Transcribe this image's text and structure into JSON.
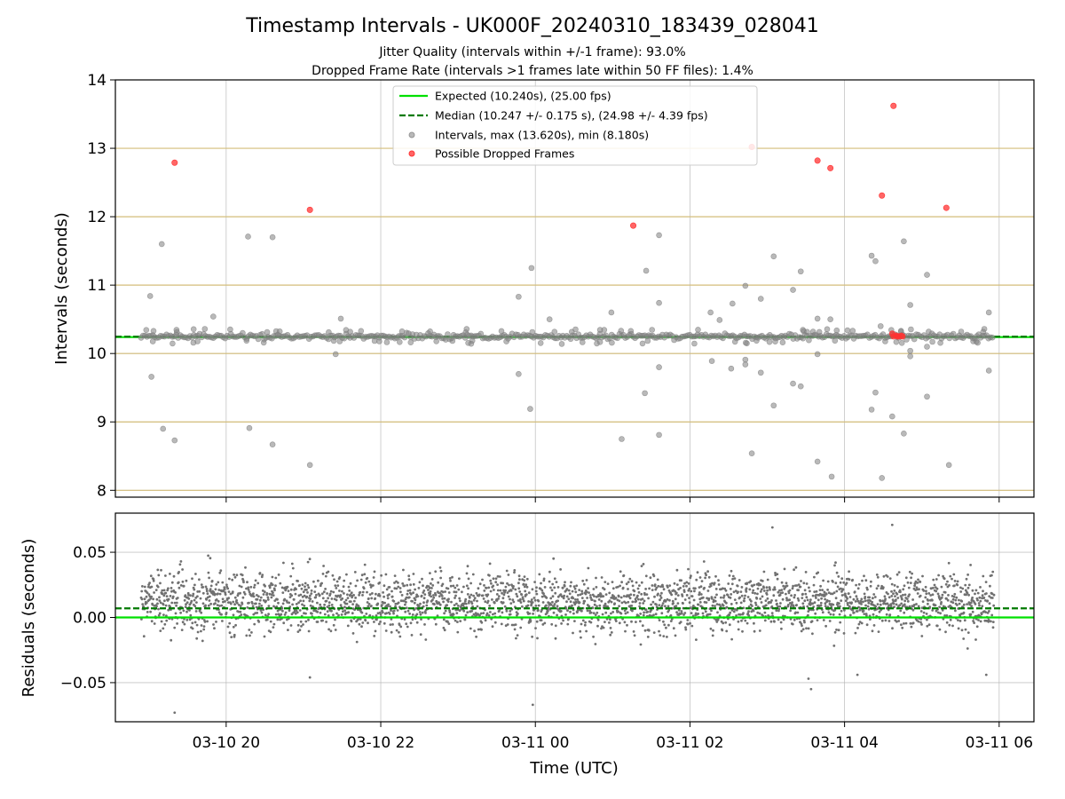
{
  "chart_data": {
    "type": "scatter",
    "title": "Timestamp Intervals - UK000F_20240310_183439_028041",
    "subtitles": [
      "Jitter Quality (intervals within +/-1 frame): 93.0%",
      "Dropped Frame Rate (intervals >1 frames late within 50 FF files): 1.4%"
    ],
    "xlabel": "Time (UTC)",
    "x_tick_labels": [
      "03-10 20",
      "03-10 22",
      "03-11 00",
      "03-11 02",
      "03-11 04",
      "03-11 06"
    ],
    "xlim": [
      "2024-03-10T18:34",
      "2024-03-11T06:27"
    ],
    "grid": true,
    "colors": {
      "expected": "#00e000",
      "median": "#007a00",
      "intervals": "#808080",
      "dropped": "#ff3333",
      "reference_band": "#d4be7a"
    },
    "panels": [
      {
        "name": "intervals",
        "ylabel": "Intervals (seconds)",
        "ylim": [
          7.9,
          14.0
        ],
        "y_ticks": [
          8,
          9,
          10,
          11,
          12,
          13,
          14
        ],
        "y_tick_labels": [
          "8",
          "9",
          "10",
          "11",
          "12",
          "13",
          "14"
        ],
        "reference_lines_y": [
          8,
          9,
          10,
          11,
          12,
          13
        ],
        "expected_y": 10.24,
        "median_y": 10.247,
        "legend_position": "top-center",
        "legend": [
          "Expected (10.240s), (25.00 fps)",
          "Median (10.247 +/- 0.175 s), (24.98 +/- 4.39 fps)",
          "Intervals, max (13.620s), min (8.180s)",
          "Possible Dropped Frames"
        ],
        "series": [
          {
            "name": "Intervals, max (13.620s), min (8.180s)",
            "core_band": [
              10.14,
              10.36
            ],
            "outliers": [
              [
                "2024-03-10T19:10",
                11.6
              ],
              [
                "2024-03-10T19:01",
                10.84
              ],
              [
                "2024-03-10T19:02",
                9.66
              ],
              [
                "2024-03-10T19:11",
                8.9
              ],
              [
                "2024-03-10T19:20",
                8.73
              ],
              [
                "2024-03-10T19:50",
                10.54
              ],
              [
                "2024-03-10T20:17",
                11.71
              ],
              [
                "2024-03-10T20:36",
                11.7
              ],
              [
                "2024-03-10T20:18",
                8.91
              ],
              [
                "2024-03-10T20:36",
                8.67
              ],
              [
                "2024-03-10T21:05",
                8.37
              ],
              [
                "2024-03-10T21:29",
                10.51
              ],
              [
                "2024-03-10T21:25",
                9.99
              ],
              [
                "2024-03-10T23:47",
                10.83
              ],
              [
                "2024-03-10T23:47",
                9.7
              ],
              [
                "2024-03-10T23:57",
                11.25
              ],
              [
                "2024-03-10T23:56",
                9.19
              ],
              [
                "2024-03-11T00:11",
                10.5
              ],
              [
                "2024-03-11T00:59",
                10.6
              ],
              [
                "2024-03-11T01:07",
                8.75
              ],
              [
                "2024-03-11T01:26",
                11.21
              ],
              [
                "2024-03-11T01:25",
                9.42
              ],
              [
                "2024-03-11T01:36",
                11.73
              ],
              [
                "2024-03-11T01:36",
                10.74
              ],
              [
                "2024-03-11T01:36",
                9.8
              ],
              [
                "2024-03-11T01:36",
                8.81
              ],
              [
                "2024-03-11T02:16",
                10.6
              ],
              [
                "2024-03-11T02:17",
                9.89
              ],
              [
                "2024-03-11T02:23",
                10.49
              ],
              [
                "2024-03-11T02:33",
                10.73
              ],
              [
                "2024-03-11T02:32",
                9.78
              ],
              [
                "2024-03-11T02:43",
                10.99
              ],
              [
                "2024-03-11T02:43",
                9.91
              ],
              [
                "2024-03-11T02:43",
                9.84
              ],
              [
                "2024-03-11T02:48",
                8.54
              ],
              [
                "2024-03-11T02:55",
                10.8
              ],
              [
                "2024-03-11T02:55",
                9.72
              ],
              [
                "2024-03-11T03:05",
                11.42
              ],
              [
                "2024-03-11T03:05",
                9.24
              ],
              [
                "2024-03-11T03:20",
                10.93
              ],
              [
                "2024-03-11T03:20",
                9.56
              ],
              [
                "2024-03-11T03:26",
                11.2
              ],
              [
                "2024-03-11T03:26",
                9.52
              ],
              [
                "2024-03-11T03:39",
                10.51
              ],
              [
                "2024-03-11T03:39",
                9.99
              ],
              [
                "2024-03-11T03:39",
                8.42
              ],
              [
                "2024-03-11T03:49",
                10.5
              ],
              [
                "2024-03-11T03:50",
                8.2
              ],
              [
                "2024-03-11T04:21",
                11.43
              ],
              [
                "2024-03-11T04:24",
                11.35
              ],
              [
                "2024-03-11T04:21",
                9.18
              ],
              [
                "2024-03-11T04:24",
                9.43
              ],
              [
                "2024-03-11T04:28",
                10.4
              ],
              [
                "2024-03-11T04:29",
                8.18
              ],
              [
                "2024-03-11T04:37",
                9.08
              ],
              [
                "2024-03-11T04:46",
                11.64
              ],
              [
                "2024-03-11T04:46",
                8.83
              ],
              [
                "2024-03-11T04:51",
                10.71
              ],
              [
                "2024-03-11T04:51",
                10.04
              ],
              [
                "2024-03-11T04:51",
                9.96
              ],
              [
                "2024-03-11T05:04",
                11.15
              ],
              [
                "2024-03-11T05:04",
                10.1
              ],
              [
                "2024-03-11T05:04",
                9.37
              ],
              [
                "2024-03-11T05:21",
                8.37
              ],
              [
                "2024-03-11T05:52",
                10.6
              ],
              [
                "2024-03-11T05:52",
                9.75
              ]
            ]
          },
          {
            "name": "Possible Dropped Frames",
            "points": [
              [
                "2024-03-10T19:20",
                12.79
              ],
              [
                "2024-03-10T21:05",
                12.1
              ],
              [
                "2024-03-11T01:16",
                11.87
              ],
              [
                "2024-03-11T02:48",
                13.02
              ],
              [
                "2024-03-11T03:39",
                12.82
              ],
              [
                "2024-03-11T03:49",
                12.71
              ],
              [
                "2024-03-11T04:29",
                12.31
              ],
              [
                "2024-03-11T04:38",
                13.62
              ],
              [
                "2024-03-11T05:19",
                12.13
              ],
              [
                "2024-03-11T04:37",
                10.29
              ],
              [
                "2024-03-11T04:38",
                10.25
              ],
              [
                "2024-03-11T04:40",
                10.26
              ],
              [
                "2024-03-11T04:41",
                10.25
              ],
              [
                "2024-03-11T04:42",
                10.25
              ],
              [
                "2024-03-11T04:44",
                10.26
              ],
              [
                "2024-03-11T04:45",
                10.25
              ]
            ]
          }
        ]
      },
      {
        "name": "residuals",
        "ylabel": "Residuals (seconds)",
        "ylim": [
          -0.08,
          0.08
        ],
        "y_ticks": [
          -0.05,
          0.0,
          0.05
        ],
        "y_tick_labels": [
          "−0.05",
          "0.00",
          "0.05"
        ],
        "expected_y": 0.0,
        "median_y": 0.007,
        "series": [
          {
            "name": "Residuals",
            "core_distribution": {
              "center": 0.012,
              "spread": 0.016
            },
            "outliers": [
              [
                "2024-03-10T19:20",
                -0.073
              ],
              [
                "2024-03-10T21:05",
                -0.046
              ],
              [
                "2024-03-10T23:58",
                -0.067
              ],
              [
                "2024-03-11T03:32",
                -0.047
              ],
              [
                "2024-03-11T03:34",
                -0.055
              ],
              [
                "2024-03-11T04:37",
                0.071
              ],
              [
                "2024-03-11T03:04",
                0.069
              ],
              [
                "2024-03-11T05:50",
                -0.044
              ],
              [
                "2024-03-11T04:10",
                -0.044
              ]
            ]
          }
        ]
      }
    ]
  }
}
